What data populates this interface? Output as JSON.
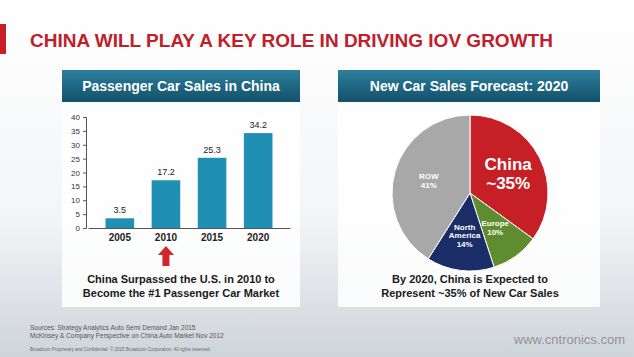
{
  "slide": {
    "title": "CHINA WILL PLAY A KEY ROLE IN DRIVING IOV GROWTH",
    "sources": [
      "Sources: Strategy Analytics Auto Semi Demand Jan 2015",
      "McKinsey & Company Perspective on China Auto Market Nov 2012"
    ],
    "footer": "Broadcom Proprietary and Confidential. © 2015 Broadcom Corporation. All rights reserved.",
    "watermark": "www.cntronics.com"
  },
  "chart_data": [
    {
      "type": "bar",
      "title": "Passenger Car Sales in China",
      "categories": [
        "2005",
        "2010",
        "2015",
        "2020"
      ],
      "values": [
        3.5,
        17.2,
        25.3,
        34.2
      ],
      "color": "#1f8fb3",
      "ylim": [
        0,
        40
      ],
      "yticks": [
        0,
        5,
        10,
        15,
        20,
        25,
        30,
        35,
        40
      ],
      "grid": false,
      "data_labels": true,
      "annotation": [
        "China Surpassed the U.S. in 2010 to",
        "Become the #1 Passenger Car Market"
      ]
    },
    {
      "type": "pie",
      "title": "New Car Sales Forecast: 2020",
      "categories": [
        "China",
        "Europe",
        "North America",
        "ROW"
      ],
      "values": [
        35,
        10,
        14,
        41
      ],
      "value_labels": [
        "~35%",
        "10%",
        "14%",
        "41%"
      ],
      "colors": [
        "#c62026",
        "#5e8c2e",
        "#1b2d66",
        "#a8a8a8"
      ],
      "data_labels": true,
      "annotation": [
        "By 2020, China is Expected to",
        "Represent ~35% of New Car Sales"
      ]
    }
  ]
}
